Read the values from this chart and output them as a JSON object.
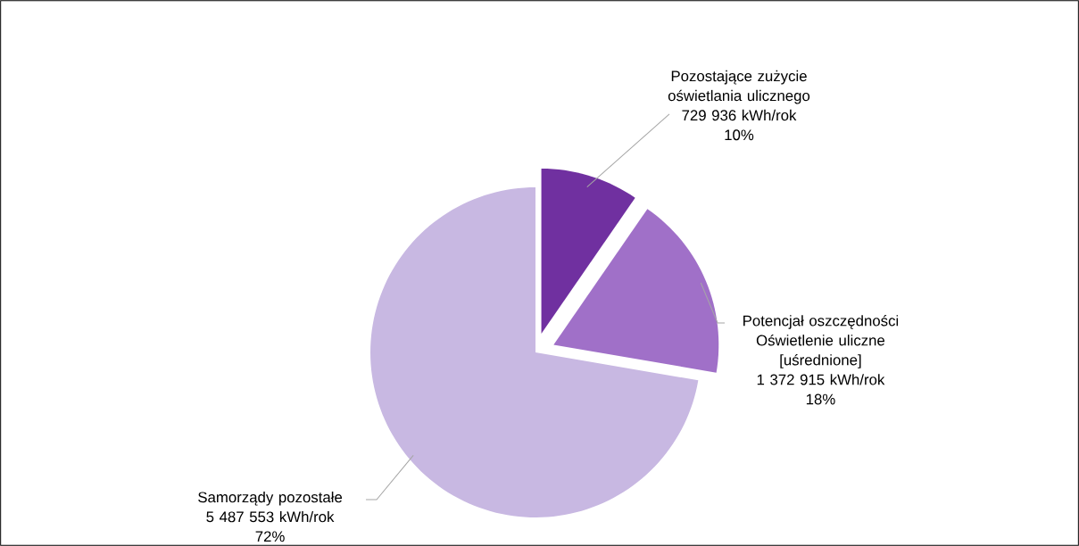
{
  "chart_data": {
    "type": "pie",
    "categories": [
      "Pozostające zużycie oświetlania ulicznego",
      "Potencjał oszczędności Oświetlenie uliczne [uśrednione]",
      "Samorządy pozostałe"
    ],
    "values": [
      729936,
      1372915,
      5487553
    ],
    "value_labels": [
      "729 936 kWh/rok\n10%",
      "1 372 915 kWh/rok\n18%",
      "5 487 553 kWh/rok\n72%"
    ],
    "colors": [
      "#7030a0",
      "#a070c8",
      "#c8b8e2"
    ]
  }
}
